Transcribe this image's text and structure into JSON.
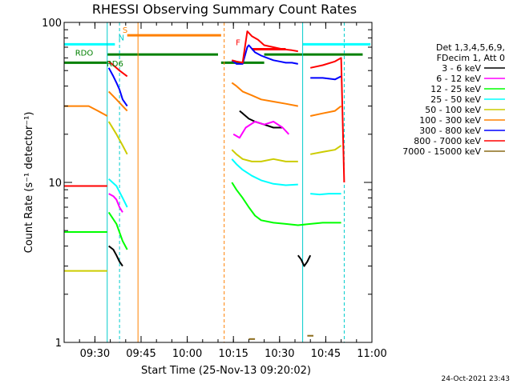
{
  "chart_data": {
    "type": "line",
    "title": "RHESSI Observing Summary Count Rates",
    "xlabel": "Start Time (25-Nov-13 09:20:02)",
    "ylabel": "Count Rate (s⁻¹ detector⁻¹)",
    "x_unit": "minutes since 09:20",
    "xlim": [
      0,
      100
    ],
    "ylim": [
      1,
      100
    ],
    "y_scale": "log",
    "x_ticks": [
      {
        "v": 10,
        "label": "09:30"
      },
      {
        "v": 25,
        "label": "09:45"
      },
      {
        "v": 40,
        "label": "10:00"
      },
      {
        "v": 55,
        "label": "10:15"
      },
      {
        "v": 70,
        "label": "10:30"
      },
      {
        "v": 85,
        "label": "10:45"
      },
      {
        "v": 100,
        "label": "11:00"
      }
    ],
    "y_ticks": [
      {
        "v": 1,
        "label": "1"
      },
      {
        "v": 10,
        "label": "10"
      },
      {
        "v": 100,
        "label": "100"
      }
    ],
    "legend_header": [
      "Det 1,3,4,5,6,9,",
      "FDecim 1, Att 0"
    ],
    "legend_position": "right",
    "series": [
      {
        "name": "3 - 6 keV",
        "color": "#000000",
        "segments": [
          [
            [
              14.5,
              4.0
            ],
            [
              16,
              3.8
            ],
            [
              17,
              3.5
            ],
            [
              18,
              3.2
            ],
            [
              19,
              3.0
            ]
          ],
          [
            [
              76,
              3.5
            ],
            [
              77,
              3.3
            ],
            [
              78,
              3.0
            ],
            [
              79,
              3.2
            ],
            [
              80,
              3.5
            ]
          ],
          [
            [
              57,
              28
            ],
            [
              58,
              27
            ],
            [
              60,
              25
            ],
            [
              62,
              24
            ],
            [
              65,
              23
            ],
            [
              68,
              22
            ],
            [
              71,
              22
            ]
          ]
        ]
      },
      {
        "name": "6 - 12 keV",
        "color": "#ff00ff",
        "segments": [
          [
            [
              14.5,
              8.5
            ],
            [
              16,
              8.2
            ],
            [
              17,
              7.8
            ],
            [
              18,
              7.0
            ],
            [
              19,
              6.5
            ]
          ],
          [
            [
              55,
              20
            ],
            [
              57,
              19
            ],
            [
              59,
              22
            ],
            [
              62,
              24
            ],
            [
              65,
              23
            ],
            [
              68,
              24
            ],
            [
              71,
              22
            ],
            [
              73,
              20
            ]
          ]
        ]
      },
      {
        "name": "12 - 25 keV",
        "color": "#00ff00",
        "segments": [
          [
            [
              0,
              4.9
            ],
            [
              14,
              4.9
            ]
          ],
          [
            [
              14.5,
              6.5
            ],
            [
              17,
              5.5
            ],
            [
              19,
              4.3
            ],
            [
              20.5,
              3.8
            ]
          ],
          [
            [
              54.5,
              10
            ],
            [
              56,
              9
            ],
            [
              58,
              8
            ],
            [
              60,
              7
            ],
            [
              62,
              6.2
            ],
            [
              64,
              5.8
            ],
            [
              68,
              5.6
            ],
            [
              72,
              5.5
            ],
            [
              76,
              5.4
            ],
            [
              80,
              5.5
            ],
            [
              84,
              5.6
            ],
            [
              87,
              5.6
            ],
            [
              90,
              5.6
            ]
          ]
        ]
      },
      {
        "name": "25 - 50 keV",
        "color": "#00ffff",
        "segments": [
          [
            [
              14.5,
              10.5
            ],
            [
              17,
              9.5
            ],
            [
              19,
              8.0
            ],
            [
              20.5,
              7.0
            ]
          ],
          [
            [
              54.5,
              14
            ],
            [
              56,
              13
            ],
            [
              58,
              12
            ],
            [
              61,
              11
            ],
            [
              64,
              10.3
            ],
            [
              68,
              9.8
            ],
            [
              72,
              9.6
            ],
            [
              76,
              9.7
            ]
          ],
          [
            [
              80,
              8.5
            ],
            [
              83,
              8.4
            ],
            [
              86,
              8.5
            ],
            [
              90,
              8.5
            ]
          ]
        ]
      },
      {
        "name": "50 - 100 keV",
        "color": "#cccc00",
        "segments": [
          [
            [
              0,
              2.8
            ],
            [
              14,
              2.8
            ]
          ],
          [
            [
              14.5,
              24
            ],
            [
              17,
              20
            ],
            [
              19,
              17
            ],
            [
              20.5,
              15
            ]
          ],
          [
            [
              54.5,
              16
            ],
            [
              56,
              15
            ],
            [
              58,
              14
            ],
            [
              61,
              13.5
            ],
            [
              64,
              13.5
            ],
            [
              68,
              14
            ],
            [
              72,
              13.5
            ],
            [
              76,
              13.5
            ]
          ],
          [
            [
              80,
              15
            ],
            [
              84,
              15.5
            ],
            [
              88,
              16
            ],
            [
              90,
              17
            ]
          ]
        ]
      },
      {
        "name": "100 - 300 keV",
        "color": "#ff8000",
        "segments": [
          [
            [
              0,
              30
            ],
            [
              8,
              30
            ],
            [
              11,
              28
            ],
            [
              14,
              26
            ]
          ],
          [
            [
              14.5,
              37
            ],
            [
              17,
              33
            ],
            [
              19,
              30
            ],
            [
              20.5,
              28
            ]
          ],
          [
            [
              54.5,
              42
            ],
            [
              56,
              40
            ],
            [
              58,
              37
            ],
            [
              61,
              35
            ],
            [
              64,
              33
            ],
            [
              68,
              32
            ],
            [
              72,
              31
            ],
            [
              76,
              30
            ]
          ],
          [
            [
              80,
              26
            ],
            [
              84,
              27
            ],
            [
              88,
              28
            ],
            [
              90,
              30
            ]
          ]
        ]
      },
      {
        "name": "300 - 800 keV",
        "color": "#0000ff",
        "segments": [
          [
            [
              14.5,
              52
            ],
            [
              16,
              46
            ],
            [
              17,
              42
            ],
            [
              18,
              38
            ],
            [
              19,
              33
            ],
            [
              20.5,
              30
            ]
          ],
          [
            [
              54.5,
              58
            ],
            [
              56,
              55
            ],
            [
              58,
              55
            ],
            [
              59.5,
              70
            ],
            [
              60,
              72
            ],
            [
              62,
              65
            ],
            [
              64,
              62
            ],
            [
              66,
              60
            ],
            [
              68,
              58
            ],
            [
              70,
              57
            ],
            [
              72,
              56
            ],
            [
              74,
              56
            ],
            [
              76,
              55
            ]
          ],
          [
            [
              80,
              45
            ],
            [
              84,
              45
            ],
            [
              88,
              44
            ],
            [
              90,
              46
            ]
          ]
        ]
      },
      {
        "name": "800 - 7000 keV",
        "color": "#ff0000",
        "segments": [
          [
            [
              0,
              9.5
            ],
            [
              14,
              9.5
            ]
          ],
          [
            [
              14.5,
              57
            ],
            [
              16,
              54
            ],
            [
              18,
              50
            ],
            [
              20.5,
              46
            ]
          ],
          [
            [
              54.5,
              58
            ],
            [
              56,
              57
            ],
            [
              58,
              56
            ],
            [
              59.5,
              88
            ],
            [
              61,
              82
            ],
            [
              63,
              78
            ],
            [
              65,
              72
            ],
            [
              68,
              70
            ],
            [
              71,
              68
            ],
            [
              74,
              67
            ],
            [
              76,
              66
            ]
          ],
          [
            [
              80,
              52
            ],
            [
              84,
              54
            ],
            [
              88,
              57
            ],
            [
              90,
              60
            ],
            [
              91,
              10
            ]
          ]
        ]
      },
      {
        "name": "7000 - 15000 keV",
        "color": "#8b6b1a",
        "segments": [
          [
            [
              60,
              1.05
            ],
            [
              62,
              1.05
            ]
          ],
          [
            [
              79,
              1.1
            ],
            [
              81,
              1.1
            ]
          ]
        ]
      }
    ],
    "annotations": [
      {
        "label": "RDO",
        "x": 6.5,
        "y": 62,
        "color": "#008000"
      },
      {
        "label": "RD6",
        "x": 16.5,
        "y": 53,
        "color": "#008000"
      },
      {
        "label": "S",
        "x": 19.8,
        "y": 86,
        "color": "#ff8000"
      },
      {
        "label": "N",
        "x": 18.6,
        "y": 77,
        "color": "#00cccc"
      },
      {
        "label": "F",
        "x": 56.5,
        "y": 72,
        "color": "#ff0000"
      }
    ],
    "timestamp": "24-Oct-2021 23:43"
  }
}
